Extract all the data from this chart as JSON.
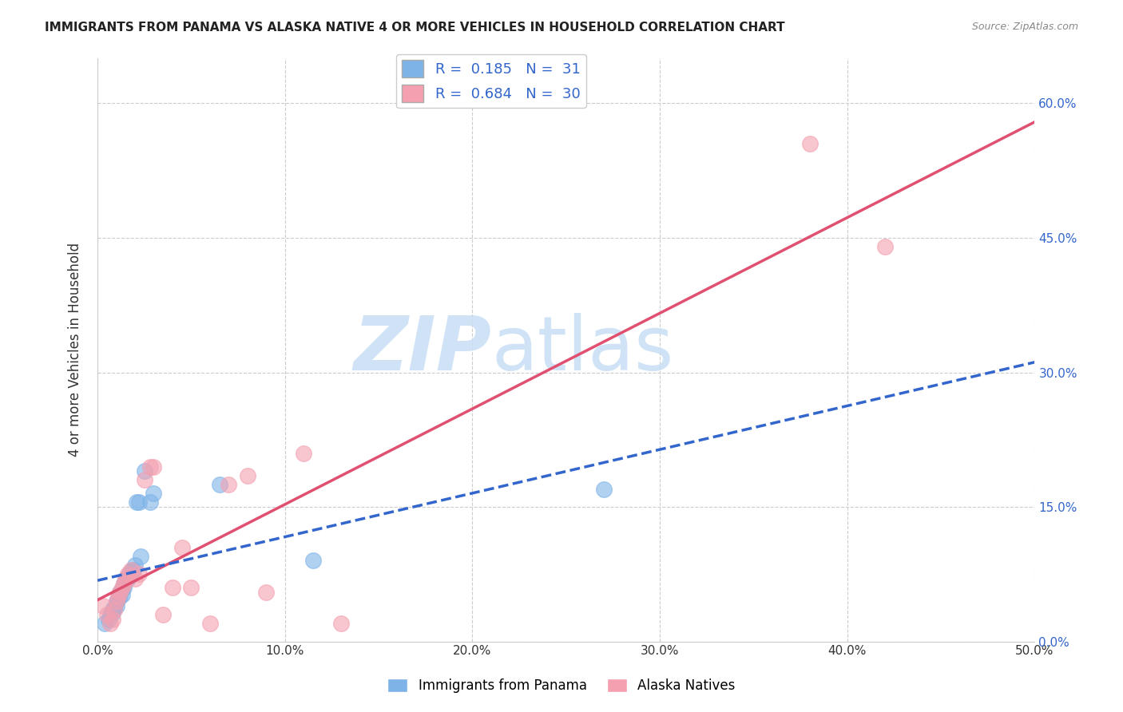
{
  "title": "IMMIGRANTS FROM PANAMA VS ALASKA NATIVE 4 OR MORE VEHICLES IN HOUSEHOLD CORRELATION CHART",
  "source": "Source: ZipAtlas.com",
  "ylabel": "4 or more Vehicles in Household",
  "xlim": [
    0.0,
    0.5
  ],
  "ylim": [
    0.0,
    0.65
  ],
  "xtick_labels": [
    "0.0%",
    "10.0%",
    "20.0%",
    "30.0%",
    "40.0%",
    "50.0%"
  ],
  "xtick_vals": [
    0.0,
    0.1,
    0.2,
    0.3,
    0.4,
    0.5
  ],
  "ytick_labels_right": [
    "0.0%",
    "15.0%",
    "30.0%",
    "45.0%",
    "60.0%"
  ],
  "ytick_vals_right": [
    0.0,
    0.15,
    0.3,
    0.45,
    0.6
  ],
  "grid_color": "#cccccc",
  "legend_R1": "R =  0.185",
  "legend_N1": "N =  31",
  "legend_R2": "R =  0.684",
  "legend_N2": "N =  30",
  "legend_label1": "Immigrants from Panama",
  "legend_label2": "Alaska Natives",
  "color_blue": "#7EB3E8",
  "color_pink": "#F4A0B0",
  "color_blue_line": "#3366CC",
  "color_pink_line": "#E05070",
  "blue_scatter_x": [
    0.004,
    0.006,
    0.007,
    0.008,
    0.008,
    0.009,
    0.01,
    0.01,
    0.011,
    0.012,
    0.012,
    0.013,
    0.013,
    0.014,
    0.014,
    0.015,
    0.016,
    0.016,
    0.017,
    0.018,
    0.019,
    0.02,
    0.021,
    0.022,
    0.023,
    0.025,
    0.028,
    0.03,
    0.065,
    0.115,
    0.27
  ],
  "blue_scatter_y": [
    0.02,
    0.025,
    0.03,
    0.032,
    0.035,
    0.038,
    0.04,
    0.045,
    0.048,
    0.05,
    0.055,
    0.052,
    0.058,
    0.06,
    0.065,
    0.068,
    0.07,
    0.072,
    0.075,
    0.078,
    0.08,
    0.085,
    0.155,
    0.155,
    0.095,
    0.19,
    0.155,
    0.165,
    0.175,
    0.09,
    0.17
  ],
  "pink_scatter_x": [
    0.003,
    0.005,
    0.007,
    0.008,
    0.009,
    0.01,
    0.011,
    0.012,
    0.013,
    0.014,
    0.015,
    0.016,
    0.018,
    0.02,
    0.022,
    0.025,
    0.028,
    0.03,
    0.035,
    0.04,
    0.045,
    0.05,
    0.06,
    0.07,
    0.08,
    0.09,
    0.11,
    0.13,
    0.38,
    0.42
  ],
  "pink_scatter_y": [
    0.04,
    0.03,
    0.02,
    0.025,
    0.035,
    0.045,
    0.05,
    0.055,
    0.06,
    0.065,
    0.07,
    0.075,
    0.08,
    0.07,
    0.075,
    0.18,
    0.195,
    0.195,
    0.03,
    0.06,
    0.105,
    0.06,
    0.02,
    0.175,
    0.185,
    0.055,
    0.21,
    0.02,
    0.555,
    0.44
  ],
  "figsize": [
    14.06,
    8.92
  ],
  "dpi": 100
}
